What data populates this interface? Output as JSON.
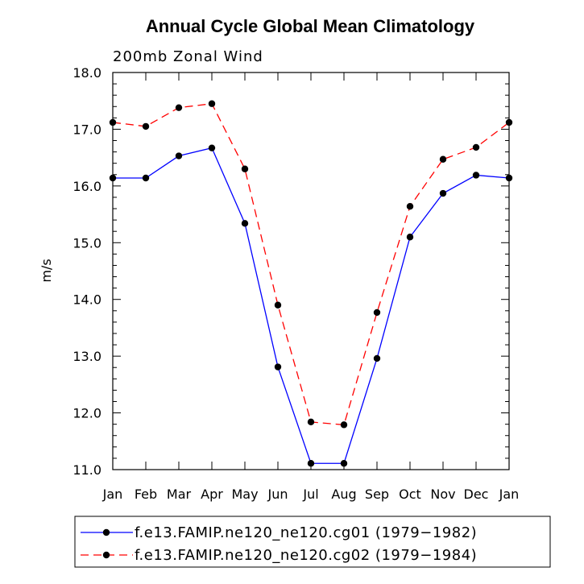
{
  "chart_data": {
    "type": "line",
    "title": "Annual Cycle Global Mean Climatology",
    "subtitle": "200mb Zonal Wind",
    "xlabel": "",
    "ylabel": "m/s",
    "ylim": [
      11.0,
      18.0
    ],
    "yticks": [
      "11.0",
      "12.0",
      "13.0",
      "14.0",
      "15.0",
      "16.0",
      "17.0",
      "18.0"
    ],
    "categories": [
      "Jan",
      "Feb",
      "Mar",
      "Apr",
      "May",
      "Jun",
      "Jul",
      "Aug",
      "Sep",
      "Oct",
      "Nov",
      "Dec",
      "Jan"
    ],
    "series": [
      {
        "name": "f.e13.FAMIP.ne120_ne120.cg01 (1979−1982)",
        "color": "#0000ff",
        "dash": "solid",
        "values": [
          16.14,
          16.14,
          16.53,
          16.67,
          15.34,
          12.81,
          11.11,
          11.11,
          12.96,
          15.1,
          15.87,
          16.19,
          16.14
        ]
      },
      {
        "name": "f.e13.FAMIP.ne120_ne120.cg02 (1979−1984)",
        "color": "#ff0000",
        "dash": "dashed",
        "values": [
          17.12,
          17.05,
          17.38,
          17.45,
          16.3,
          13.9,
          11.84,
          11.79,
          13.77,
          15.64,
          16.47,
          16.68,
          17.12
        ]
      }
    ],
    "legend": "bottom",
    "grid": false
  }
}
